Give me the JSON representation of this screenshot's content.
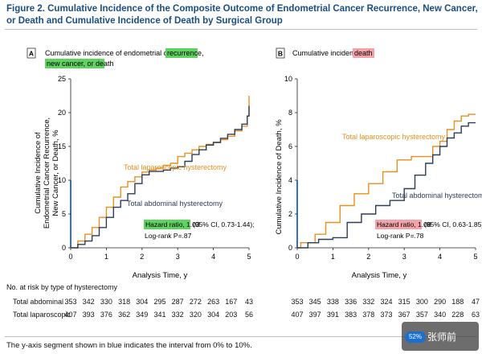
{
  "figure_title": "Figure 2. Cumulative Incidence of the Composite Outcome of Endometrial Cancer Recurrence, New Cancer, or Death and Cumulative Incidence of Death by Surgical Group",
  "panel_a": {
    "letter": "A",
    "header_plain": "Cumulative incidence of endometrial cancer",
    "header_highlight_1": "recurrence,",
    "header_highlight_2": "new cancer, or death",
    "ylabel_line1": "Cumulative Incidence of",
    "ylabel_line2": "Endometrial Cancer Recurrence,",
    "ylabel_line3": "New Cancer, or Death, %",
    "xlabel": "Analysis Time, y",
    "label_lap": "Total laparoscopic hysterectomy",
    "label_abd": "Total abdominal hysterectomy",
    "hr_highlight": "Hazard ratio, 1.03",
    "hr_rest": "(95% CI, 0.73-1.44);",
    "logrank": "Log-rank P=.87"
  },
  "panel_b": {
    "letter": "B",
    "header_plain": "Cumulative incidence of",
    "header_highlight": "death",
    "ylabel": "Cumulative Incidence of Death, %",
    "xlabel": "Analysis Time, y",
    "label_lap": "Total laparoscopic hysterectomy",
    "label_abd": "Total abdominal hysterectomy",
    "hr_highlight": "Hazard ratio, 1.08",
    "hr_rest": "(95% CI, 0.63-1.85);",
    "logrank": "Log-rank P=.78"
  },
  "risk_table": {
    "heading": "No. at risk by type of hysterectomy",
    "row_abd_label": "Total abdominal",
    "row_lap_label": "Total laparoscopic",
    "abd_values": [
      "353",
      "342",
      "330",
      "318",
      "304",
      "295",
      "287",
      "272",
      "263",
      "167",
      "43"
    ],
    "lap_values": [
      "407",
      "393",
      "376",
      "362",
      "349",
      "341",
      "332",
      "320",
      "304",
      "203",
      "56"
    ],
    "abd_values_b": [
      "353",
      "345",
      "338",
      "336",
      "332",
      "324",
      "315",
      "300",
      "290",
      "188",
      "47"
    ],
    "lap_values_b": [
      "407",
      "397",
      "391",
      "383",
      "378",
      "373",
      "367",
      "357",
      "340",
      "228",
      "63"
    ]
  },
  "footnote": "The y-axis segment shown in blue indicates the interval from 0% to 10%.",
  "watermark": {
    "text": "张师前",
    "badge": "52%"
  },
  "colors": {
    "laparoscopic": "#e8901e",
    "abdominal": "#2b3d57",
    "title_blue": "#1a4e83",
    "highlight_green": "#5fd35f",
    "highlight_red": "#f4a3a8"
  },
  "chart_data": [
    {
      "type": "line",
      "panel": "A",
      "xlabel": "Analysis Time, y",
      "ylabel": "Cumulative Incidence of Endometrial Cancer Recurrence, New Cancer, or Death, %",
      "xlim": [
        0,
        5
      ],
      "ylim": [
        0,
        25
      ],
      "x_ticks": [
        0,
        1,
        2,
        3,
        4,
        5
      ],
      "y_ticks": [
        0,
        5,
        10,
        15,
        20,
        25
      ],
      "series": [
        {
          "name": "Total laparoscopic hysterectomy",
          "x": [
            0,
            0.2,
            0.4,
            0.6,
            0.8,
            1.0,
            1.2,
            1.4,
            1.6,
            1.8,
            2.0,
            2.2,
            2.4,
            2.6,
            2.8,
            3.0,
            3.2,
            3.4,
            3.6,
            3.8,
            4.0,
            4.2,
            4.4,
            4.6,
            4.8,
            4.95,
            5.0
          ],
          "y": [
            0,
            1.0,
            2.0,
            3.0,
            4.5,
            6.0,
            7.5,
            9.0,
            9.8,
            10.5,
            11.2,
            11.5,
            11.8,
            12.2,
            12.5,
            13.5,
            14.0,
            14.5,
            15.0,
            15.3,
            15.6,
            16.0,
            16.5,
            17.3,
            18.0,
            19.5,
            22.5
          ]
        },
        {
          "name": "Total abdominal hysterectomy",
          "x": [
            0,
            0.2,
            0.4,
            0.6,
            0.8,
            1.0,
            1.2,
            1.4,
            1.6,
            1.8,
            2.0,
            2.2,
            2.4,
            2.6,
            2.8,
            3.0,
            3.2,
            3.4,
            3.6,
            3.8,
            4.0,
            4.2,
            4.4,
            4.6,
            4.8,
            4.95,
            5.0
          ],
          "y": [
            0,
            0.5,
            1.0,
            1.8,
            3.0,
            4.5,
            6.0,
            7.0,
            8.0,
            9.5,
            10.8,
            11.3,
            11.3,
            11.5,
            11.8,
            12.0,
            12.8,
            13.8,
            14.5,
            15.2,
            15.6,
            16.2,
            16.8,
            17.5,
            18.3,
            19.5,
            21.0
          ]
        }
      ]
    },
    {
      "type": "line",
      "panel": "B",
      "xlabel": "Analysis Time, y",
      "ylabel": "Cumulative Incidence of Death, %",
      "xlim": [
        0,
        5
      ],
      "ylim": [
        0,
        10
      ],
      "x_ticks": [
        0,
        1,
        2,
        3,
        4,
        5
      ],
      "y_ticks": [
        0,
        2,
        4,
        6,
        8,
        10
      ],
      "series": [
        {
          "name": "Total laparoscopic hysterectomy",
          "x": [
            0,
            0.1,
            0.5,
            0.8,
            1.2,
            1.6,
            2.0,
            2.4,
            2.8,
            3.2,
            3.5,
            3.8,
            4.0,
            4.2,
            4.4,
            4.6,
            4.8,
            5.0
          ],
          "y": [
            0,
            0.3,
            0.8,
            1.5,
            2.5,
            3.2,
            3.8,
            4.5,
            5.2,
            5.4,
            5.4,
            6.0,
            6.3,
            7.0,
            7.5,
            7.8,
            7.9,
            7.9
          ]
        },
        {
          "name": "Total abdominal hysterectomy",
          "x": [
            0,
            0.3,
            0.6,
            1.0,
            1.4,
            1.8,
            2.2,
            2.6,
            3.0,
            3.3,
            3.6,
            3.8,
            4.0,
            4.2,
            4.4,
            4.6,
            4.8,
            5.0
          ],
          "y": [
            0,
            0.3,
            0.5,
            0.6,
            1.5,
            2.0,
            2.5,
            2.8,
            3.5,
            4.3,
            5.0,
            5.5,
            6.0,
            6.5,
            6.8,
            7.2,
            7.4,
            7.4
          ]
        }
      ]
    }
  ]
}
